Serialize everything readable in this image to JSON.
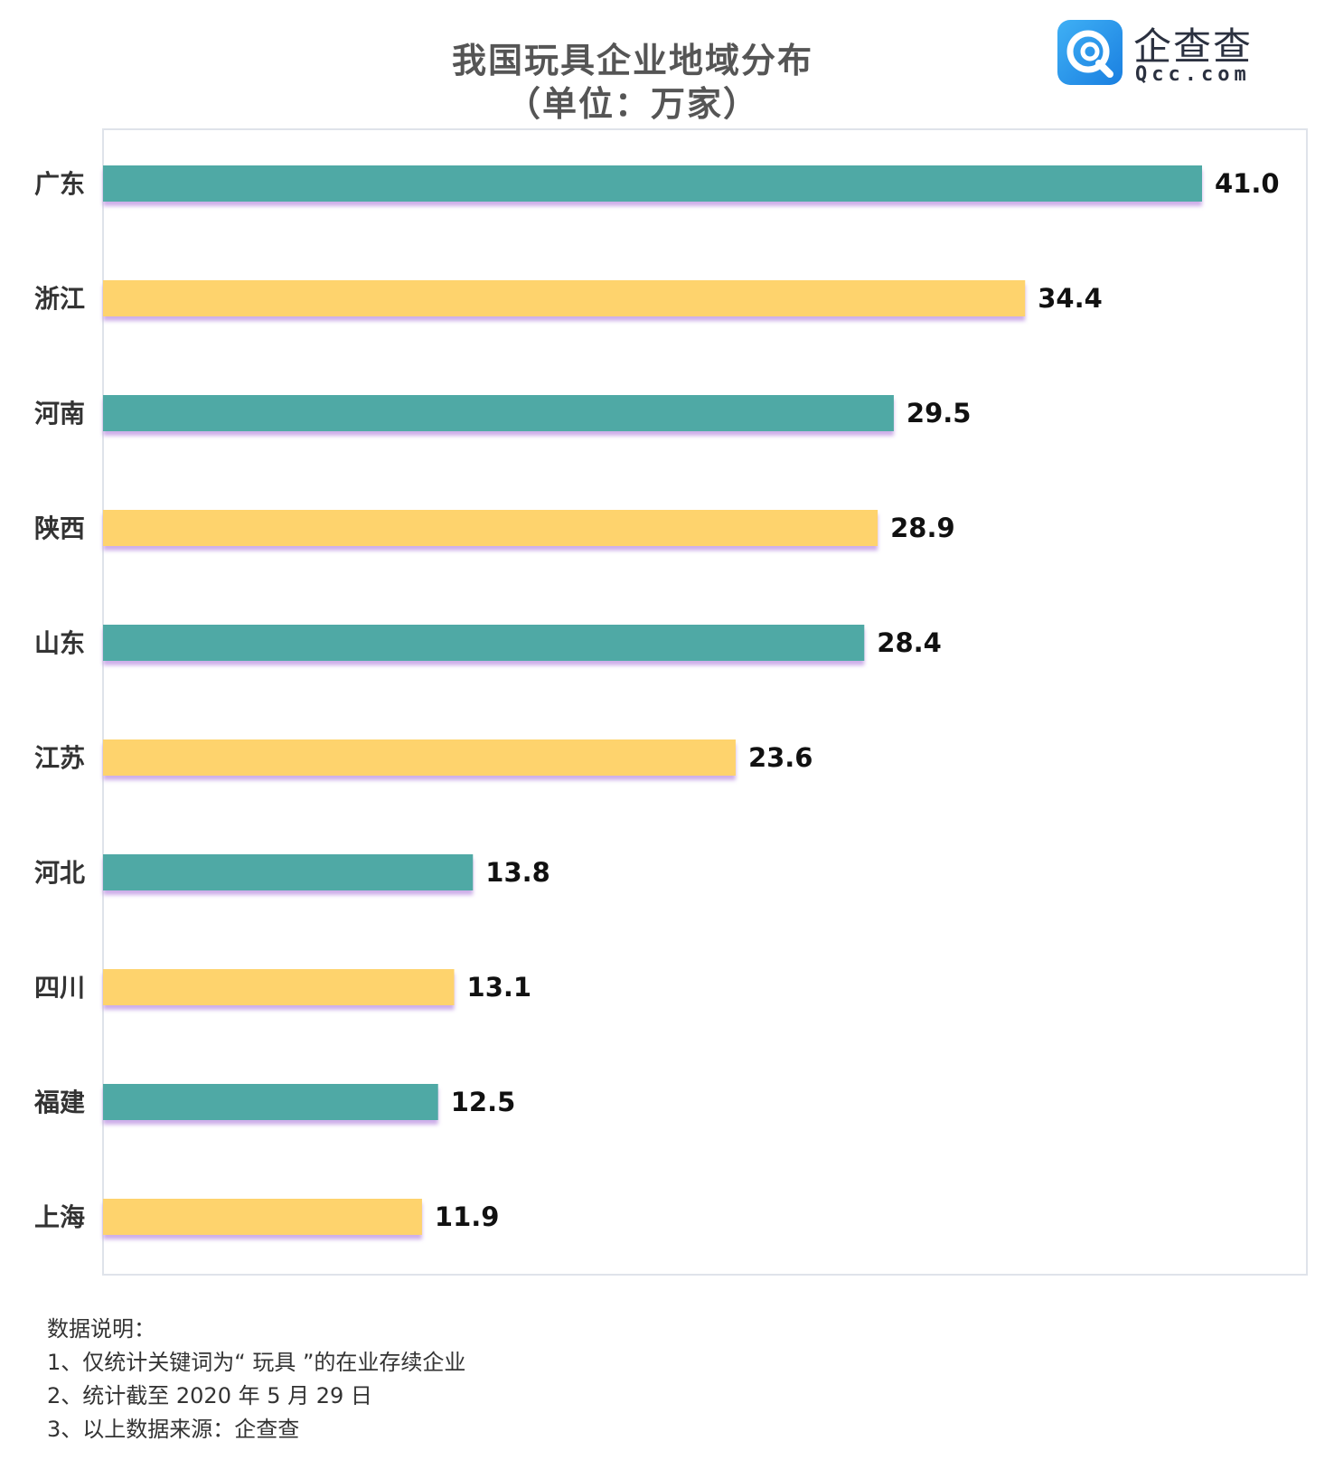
{
  "header": {
    "title_line1": "我国玩具企业地域分布",
    "title_line2": "（单位：万家）"
  },
  "logo": {
    "icon": "qcc-logo-icon",
    "name": "企查查",
    "domain": "Qcc.com",
    "color": "#2a8df0"
  },
  "chart_data": {
    "type": "bar",
    "orientation": "horizontal",
    "categories": [
      "广东",
      "浙江",
      "河南",
      "陕西",
      "山东",
      "江苏",
      "河北",
      "四川",
      "福建",
      "上海"
    ],
    "values": [
      41.0,
      34.4,
      29.5,
      28.9,
      28.4,
      23.6,
      13.8,
      13.1,
      12.5,
      11.9
    ],
    "value_labels": [
      "41.0",
      "34.4",
      "29.5",
      "28.9",
      "28.4",
      "23.6",
      "13.8",
      "13.1",
      "12.5",
      "11.9"
    ],
    "colors": [
      "#4fa9a5",
      "#fed36d"
    ],
    "shadow_color": "#c7a6e6",
    "grid": false,
    "legend": "none"
  },
  "notes": {
    "heading": "数据说明：",
    "items": [
      "1、仅统计关键词为“ 玩具 ”的在业存续企业",
      "2、统计截至 2020 年 5 月 29 日",
      "3、以上数据来源：企查查"
    ]
  }
}
